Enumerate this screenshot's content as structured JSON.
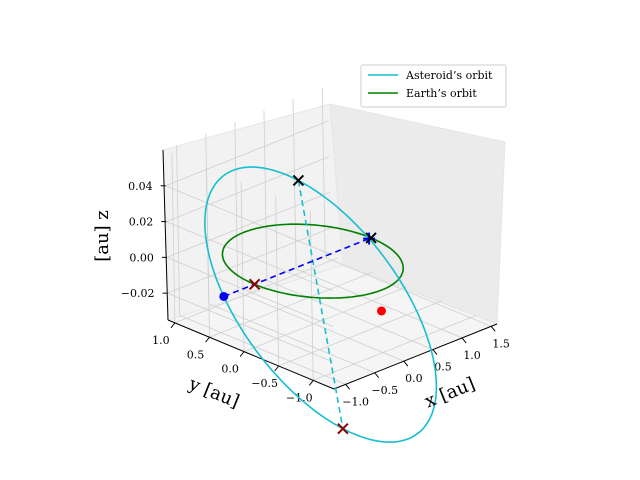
{
  "chart_data": {
    "type": "line3d",
    "title": "",
    "xlabel": "x [au]",
    "ylabel": "y [au]",
    "zlabel": "[au] z",
    "xlim": [
      -1.2,
      1.6
    ],
    "ylim": [
      -1.3,
      1.1
    ],
    "zlim": [
      -0.035,
      0.06
    ],
    "xticks": [
      -1.0,
      -0.5,
      0.0,
      0.5,
      1.0,
      1.5
    ],
    "yticks": [
      -1.0,
      -0.5,
      0.0,
      0.5,
      1.0
    ],
    "zticks": [
      -0.02,
      0.0,
      0.02,
      0.04
    ],
    "xtick_labels": [
      "−1.0",
      "−0.5",
      "0.0",
      "0.5",
      "1.0",
      "1.5"
    ],
    "ytick_labels": [
      "−1.0",
      "−0.5",
      "0.0",
      "0.5",
      "1.0"
    ],
    "ztick_labels": [
      "−0.02",
      "0.00",
      "0.02",
      "0.04"
    ],
    "grid": true,
    "legend_position": "top-right",
    "series": [
      {
        "name": "Asteroid’s orbit",
        "color": "#17becf",
        "kind": "ellipse",
        "semi_major_axis": 1.35,
        "eccentricity": 0.35,
        "inclination_deg": 2.3,
        "node_deg": 0,
        "perihelion_arg_deg": 50
      },
      {
        "name": "Earth’s orbit",
        "color": "#008000",
        "kind": "circle",
        "radius": 1.0
      }
    ],
    "annotations": {
      "apsis_line": {
        "color": "#17becf",
        "style": "dashed"
      },
      "node_line": {
        "color": "#0000ff",
        "style": "dashed"
      },
      "asteroid_position": {
        "x": 0.0,
        "y": -0.87,
        "z": -0.015,
        "color": "#ff0000"
      },
      "earth_markers": [
        {
          "x": 1.0,
          "y": 0.0,
          "z": 0.0,
          "marker": "x",
          "color": "#000000"
        },
        {
          "x": -1.0,
          "y": 0.0,
          "z": 0.0,
          "marker": "x",
          "color": "#8b0000"
        }
      ],
      "asteroid_apsis_markers": [
        {
          "label": "perihelion",
          "marker": "x",
          "color": "#000000"
        },
        {
          "label": "aphelion",
          "marker": "x",
          "color": "#8b0000"
        }
      ],
      "ascending_node": {
        "marker": "o",
        "color": "#0000ff"
      },
      "descending_node": {
        "marker": "+",
        "color": "#0000ff"
      }
    }
  }
}
